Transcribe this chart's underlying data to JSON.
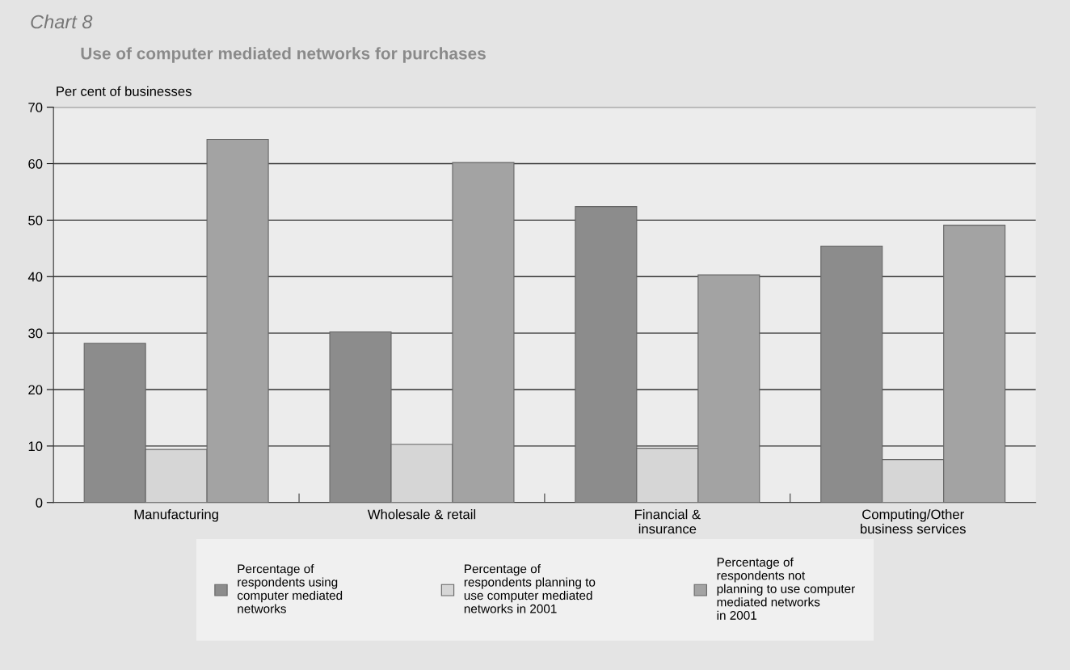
{
  "chart_data": {
    "type": "bar",
    "title": "Chart 8",
    "subtitle": "Use of computer mediated networks for purchases",
    "ylabel": "Per cent of businesses",
    "categories": [
      "Manufacturing",
      "Wholesale & retail",
      "Financial &\ninsurance",
      "Computing/Other\nbusiness services"
    ],
    "series": [
      {
        "name": "Percentage of\nrespondents using\ncomputer mediated\nnetworks",
        "color": "#8c8c8c",
        "values": [
          28.2,
          30.2,
          52.4,
          45.4
        ]
      },
      {
        "name": "Percentage of\nrespondents planning to\nuse computer mediated\nnetworks in 2001",
        "color": "#d6d6d6",
        "values": [
          9.4,
          10.3,
          9.6,
          7.6
        ]
      },
      {
        "name": "Percentage of\nrespondents not\nplanning to use computer\nmediated networks\nin 2001",
        "color": "#a3a3a3",
        "values": [
          64.3,
          60.2,
          40.3,
          49.1
        ]
      }
    ],
    "ylim": [
      0,
      70
    ],
    "yticks": [
      0,
      10,
      20,
      30,
      40,
      50,
      60,
      70
    ],
    "grid": "y",
    "legend": "bottom"
  }
}
